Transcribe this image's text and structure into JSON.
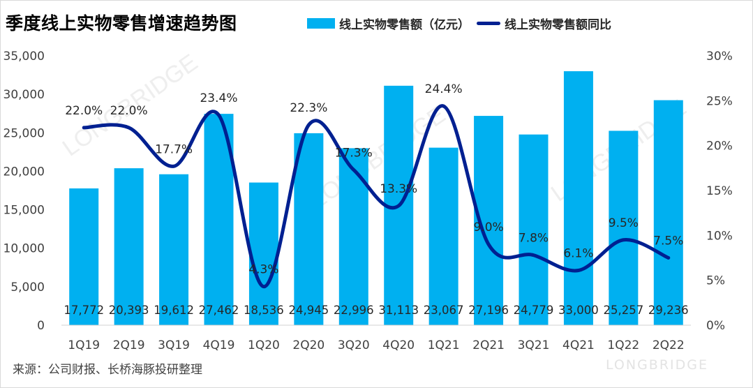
{
  "title": "季度线上实物零售增速趋势图",
  "source": "来源：公司财报、长桥海豚投研整理",
  "brand_mark": "LONGBRIDGE",
  "colors": {
    "bar": "#00b0f0",
    "line": "#002091",
    "axis_text": "#404040"
  },
  "chart_data": {
    "type": "bar",
    "title": "季度线上实物零售增速趋势图",
    "categories": [
      "1Q19",
      "2Q19",
      "3Q19",
      "4Q19",
      "1Q20",
      "2Q20",
      "3Q20",
      "4Q20",
      "1Q21",
      "2Q21",
      "3Q21",
      "4Q21",
      "1Q22",
      "2Q22"
    ],
    "series": [
      {
        "name": "线上实物零售额（亿元）",
        "type": "bar",
        "axis": "left",
        "values": [
          17772,
          20393,
          19612,
          27462,
          18536,
          24945,
          22996,
          31113,
          23067,
          27196,
          24779,
          33000,
          25257,
          29236
        ],
        "labels": [
          "17,772",
          "20,393",
          "19,612",
          "27,462",
          "18,536",
          "24,945",
          "22,996",
          "31,113",
          "23,067",
          "27,196",
          "24,779",
          "33,000",
          "25,257",
          "29,236"
        ]
      },
      {
        "name": "线上实物零售额同比",
        "type": "line",
        "axis": "right",
        "values": [
          22.0,
          22.0,
          17.7,
          23.4,
          4.3,
          22.3,
          17.3,
          13.3,
          24.4,
          9.0,
          7.8,
          6.1,
          9.5,
          7.5
        ],
        "labels": [
          "22.0%",
          "22.0%",
          "17.7%",
          "23.4%",
          "4.3%",
          "22.3%",
          "17.3%",
          "13.3%",
          "24.4%",
          "9.0%",
          "7.8%",
          "6.1%",
          "9.5%",
          "7.5%"
        ]
      }
    ],
    "y_left": {
      "min": 0,
      "max": 35000,
      "ticks": [
        "0",
        "5,000",
        "10,000",
        "15,000",
        "20,000",
        "25,000",
        "30,000",
        "35,000"
      ]
    },
    "y_right": {
      "min": 0,
      "max": 30,
      "ticks": [
        "0%",
        "5%",
        "10%",
        "15%",
        "20%",
        "25%",
        "30%"
      ]
    },
    "grid": false,
    "legend_position": "top"
  }
}
